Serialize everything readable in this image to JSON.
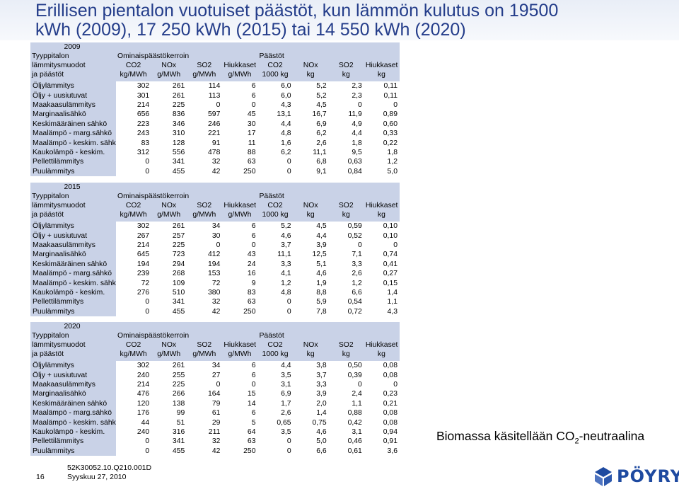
{
  "header": {
    "title_line1": "Erillisen pientalon vuotuiset päästöt, kun lämmön kulutus on 19500",
    "title_line2": "kWh (2009), 17 250 kWh (2015) tai 14 550 kWh (2020)"
  },
  "column_headers": {
    "row1": [
      "Tyyppitalon",
      "Ominaispäästökerroin",
      "Päästöt"
    ],
    "row2": [
      "lämmitysmuodot",
      "CO2",
      "NOx",
      "SO2",
      "Hiukkaset",
      "CO2",
      "NOx",
      "SO2",
      "Hiukkaset"
    ],
    "row3": [
      "ja päästöt",
      "kg/MWh",
      "g/MWh",
      "g/MWh",
      "g/MWh",
      "1000 kg",
      "kg",
      "kg",
      "kg"
    ]
  },
  "tables": [
    {
      "year": "2009",
      "rows": [
        [
          "Öljylämmitys",
          "302",
          "261",
          "114",
          "6",
          "6,0",
          "5,2",
          "2,3",
          "0,11"
        ],
        [
          "Öljy + uusiutuvat",
          "301",
          "261",
          "113",
          "6",
          "6,0",
          "5,2",
          "2,3",
          "0,11"
        ],
        [
          "Maakaasulämmitys",
          "214",
          "225",
          "0",
          "0",
          "4,3",
          "4,5",
          "0",
          "0"
        ],
        [
          "Marginaalisähkö",
          "656",
          "836",
          "597",
          "45",
          "13,1",
          "16,7",
          "11,9",
          "0,89"
        ],
        [
          "Keskimääräinen sähkö",
          "223",
          "346",
          "246",
          "30",
          "4,4",
          "6,9",
          "4,9",
          "0,60"
        ],
        [
          "Maalämpö - marg.sähkö",
          "243",
          "310",
          "221",
          "17",
          "4,8",
          "6,2",
          "4,4",
          "0,33"
        ],
        [
          "Maalämpö - keskim. sähkö",
          "83",
          "128",
          "91",
          "11",
          "1,6",
          "2,6",
          "1,8",
          "0,22"
        ],
        [
          "Kaukolämpö - keskim.",
          "312",
          "556",
          "478",
          "88",
          "6,2",
          "11,1",
          "9,5",
          "1,8"
        ],
        [
          "Pellettilämmitys",
          "0",
          "341",
          "32",
          "63",
          "0",
          "6,8",
          "0,63",
          "1,2"
        ],
        [
          "Puulämmitys",
          "0",
          "455",
          "42",
          "250",
          "0",
          "9,1",
          "0,84",
          "5,0"
        ]
      ]
    },
    {
      "year": "2015",
      "rows": [
        [
          "Öljylämmitys",
          "302",
          "261",
          "34",
          "6",
          "5,2",
          "4,5",
          "0,59",
          "0,10"
        ],
        [
          "Öljy + uusiutuvat",
          "267",
          "257",
          "30",
          "6",
          "4,6",
          "4,4",
          "0,52",
          "0,10"
        ],
        [
          "Maakaasulämmitys",
          "214",
          "225",
          "0",
          "0",
          "3,7",
          "3,9",
          "0",
          "0"
        ],
        [
          "Marginaalisähkö",
          "645",
          "723",
          "412",
          "43",
          "11,1",
          "12,5",
          "7,1",
          "0,74"
        ],
        [
          "Keskimääräinen sähkö",
          "194",
          "294",
          "194",
          "24",
          "3,3",
          "5,1",
          "3,3",
          "0,41"
        ],
        [
          "Maalämpö - marg.sähkö",
          "239",
          "268",
          "153",
          "16",
          "4,1",
          "4,6",
          "2,6",
          "0,27"
        ],
        [
          "Maalämpö - keskim. sähkö",
          "72",
          "109",
          "72",
          "9",
          "1,2",
          "1,9",
          "1,2",
          "0,15"
        ],
        [
          "Kaukolämpö - keskim.",
          "276",
          "510",
          "380",
          "83",
          "4,8",
          "8,8",
          "6,6",
          "1,4"
        ],
        [
          "Pellettilämmitys",
          "0",
          "341",
          "32",
          "63",
          "0",
          "5,9",
          "0,54",
          "1,1"
        ],
        [
          "Puulämmitys",
          "0",
          "455",
          "42",
          "250",
          "0",
          "7,8",
          "0,72",
          "4,3"
        ]
      ]
    },
    {
      "year": "2020",
      "rows": [
        [
          "Öljylämmitys",
          "302",
          "261",
          "34",
          "6",
          "4,4",
          "3,8",
          "0,50",
          "0,08"
        ],
        [
          "Öljy + uusiutuvat",
          "240",
          "255",
          "27",
          "6",
          "3,5",
          "3,7",
          "0,39",
          "0,08"
        ],
        [
          "Maakaasulämmitys",
          "214",
          "225",
          "0",
          "0",
          "3,1",
          "3,3",
          "0",
          "0"
        ],
        [
          "Marginaalisähkö",
          "476",
          "266",
          "164",
          "15",
          "6,9",
          "3,9",
          "2,4",
          "0,23"
        ],
        [
          "Keskimääräinen sähkö",
          "120",
          "138",
          "79",
          "14",
          "1,7",
          "2,0",
          "1,1",
          "0,21"
        ],
        [
          "Maalämpö - marg.sähkö",
          "176",
          "99",
          "61",
          "6",
          "2,6",
          "1,4",
          "0,88",
          "0,08"
        ],
        [
          "Maalämpö - keskim. sähkö",
          "44",
          "51",
          "29",
          "5",
          "0,65",
          "0,75",
          "0,42",
          "0,08"
        ],
        [
          "Kaukolämpö - keskim.",
          "240",
          "316",
          "211",
          "64",
          "3,5",
          "4,6",
          "3,1",
          "0,94"
        ],
        [
          "Pellettilämmitys",
          "0",
          "341",
          "32",
          "63",
          "0",
          "5,0",
          "0,46",
          "0,91"
        ],
        [
          "Puulämmitys",
          "0",
          "455",
          "42",
          "250",
          "0",
          "6,6",
          "0,61",
          "3,6"
        ]
      ]
    }
  ],
  "note": {
    "prefix": "Biomassa käsitellään CO",
    "subscript": "2",
    "suffix": "-neutraalina"
  },
  "footer": {
    "page_number": "16",
    "doc_code": "52K30052.10.Q210.001D",
    "date": "Syyskuu 27, 2010",
    "logo_text": "PÖYRY"
  },
  "colors": {
    "title": "#243d8a",
    "table_band": "#c9d2e7",
    "logo": "#1e4aa0"
  }
}
